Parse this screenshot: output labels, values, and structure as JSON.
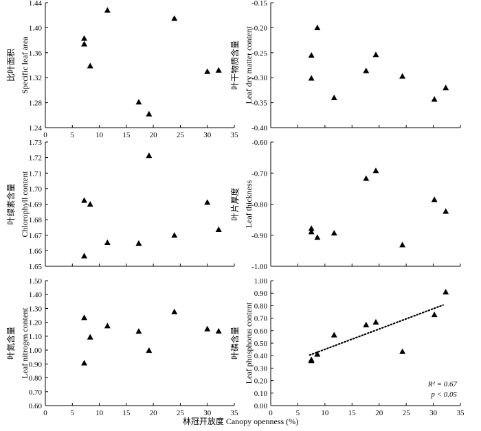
{
  "x_axis_label": "林冠开放度 Canopy openness (%)",
  "chart_data": [
    {
      "type": "scatter",
      "ylabel_cn": "比叶面积",
      "ylabel_en": "Specific leaf area",
      "xlim": [
        0,
        35
      ],
      "ylim": [
        1.24,
        1.44
      ],
      "xticks": [
        "0",
        "5",
        "10",
        "15",
        "20",
        "25",
        "30",
        "35"
      ],
      "yticks": [
        "1.24",
        "1.28",
        "1.32",
        "1.36",
        "1.40",
        "1.44"
      ],
      "points": [
        {
          "x": 7.2,
          "y": 1.383
        },
        {
          "x": 7.2,
          "y": 1.374
        },
        {
          "x": 8.3,
          "y": 1.339
        },
        {
          "x": 11.5,
          "y": 1.428
        },
        {
          "x": 17.3,
          "y": 1.281
        },
        {
          "x": 19.2,
          "y": 1.262
        },
        {
          "x": 23.9,
          "y": 1.415
        },
        {
          "x": 30.0,
          "y": 1.33
        },
        {
          "x": 32.1,
          "y": 1.332
        }
      ]
    },
    {
      "type": "scatter",
      "ylabel_cn": "叶干物质含量",
      "ylabel_en": "Leaf dry matter content",
      "xlim": [
        0,
        35
      ],
      "ylim": [
        -0.4,
        -0.15
      ],
      "xticks": [],
      "yticks": [
        "-0.15",
        "-0.20",
        "-0.25",
        "-0.30",
        "-0.35",
        "-0.40"
      ],
      "points": [
        {
          "x": 7.5,
          "y": -0.255
        },
        {
          "x": 7.5,
          "y": -0.301
        },
        {
          "x": 8.6,
          "y": -0.2
        },
        {
          "x": 11.7,
          "y": -0.34
        },
        {
          "x": 17.6,
          "y": -0.286
        },
        {
          "x": 19.4,
          "y": -0.254
        },
        {
          "x": 24.3,
          "y": -0.297
        },
        {
          "x": 30.2,
          "y": -0.343
        },
        {
          "x": 32.3,
          "y": -0.32
        }
      ]
    },
    {
      "type": "scatter",
      "ylabel_cn": "叶绿素含量",
      "ylabel_en": "Chlorophyll content",
      "xlim": [
        0,
        35
      ],
      "ylim": [
        1.65,
        1.73
      ],
      "xticks": [],
      "yticks": [
        "1.65",
        "1.66",
        "1.67",
        "1.68",
        "1.69",
        "1.70",
        "1.71",
        "1.72",
        "1.73"
      ],
      "points": [
        {
          "x": 7.2,
          "y": 1.6925
        },
        {
          "x": 7.2,
          "y": 1.6567
        },
        {
          "x": 8.3,
          "y": 1.69
        },
        {
          "x": 11.5,
          "y": 1.6653
        },
        {
          "x": 17.3,
          "y": 1.6648
        },
        {
          "x": 19.2,
          "y": 1.7213
        },
        {
          "x": 23.9,
          "y": 1.67
        },
        {
          "x": 30.0,
          "y": 1.6912
        },
        {
          "x": 32.1,
          "y": 1.6737
        }
      ]
    },
    {
      "type": "scatter",
      "ylabel_cn": "叶片厚度",
      "ylabel_en": "Leaf thickness",
      "xlim": [
        0,
        35
      ],
      "ylim": [
        -1.0,
        -0.6
      ],
      "xticks": [],
      "yticks": [
        "-0.60",
        "-0.70",
        "-0.80",
        "-0.90",
        "-1.00"
      ],
      "points": [
        {
          "x": 7.5,
          "y": -0.878
        },
        {
          "x": 7.5,
          "y": -0.889
        },
        {
          "x": 8.6,
          "y": -0.907
        },
        {
          "x": 11.7,
          "y": -0.893
        },
        {
          "x": 17.6,
          "y": -0.717
        },
        {
          "x": 19.4,
          "y": -0.692
        },
        {
          "x": 24.3,
          "y": -0.931
        },
        {
          "x": 30.2,
          "y": -0.785
        },
        {
          "x": 32.3,
          "y": -0.823
        }
      ]
    },
    {
      "type": "scatter",
      "ylabel_cn": "叶氮含量",
      "ylabel_en": "Leaf nitrogen content",
      "xlim": [
        0,
        35
      ],
      "ylim": [
        0.6,
        1.5
      ],
      "xticks": [
        "0",
        "5",
        "10",
        "15",
        "20",
        "25",
        "30",
        "35"
      ],
      "yticks": [
        "0.60",
        "0.70",
        "0.80",
        "0.90",
        "1.00",
        "1.10",
        "1.20",
        "1.30",
        "1.40",
        "1.50"
      ],
      "points": [
        {
          "x": 7.2,
          "y": 1.234
        },
        {
          "x": 7.2,
          "y": 0.907
        },
        {
          "x": 8.3,
          "y": 1.094
        },
        {
          "x": 11.5,
          "y": 1.175
        },
        {
          "x": 17.3,
          "y": 1.136
        },
        {
          "x": 19.2,
          "y": 0.998
        },
        {
          "x": 23.9,
          "y": 1.276
        },
        {
          "x": 30.0,
          "y": 1.153
        },
        {
          "x": 32.1,
          "y": 1.137
        }
      ]
    },
    {
      "type": "scatter",
      "ylabel_cn": "叶磷含量",
      "ylabel_en": "Leaf phosphorus content",
      "xlim": [
        0,
        35
      ],
      "ylim": [
        0.0,
        1.0
      ],
      "xticks": [
        "0",
        "5",
        "10",
        "15",
        "20",
        "25",
        "30",
        "35"
      ],
      "yticks": [
        "0.00",
        "0.10",
        "0.20",
        "0.30",
        "0.40",
        "0.50",
        "0.60",
        "0.70",
        "0.80",
        "0.90",
        "1.00"
      ],
      "points": [
        {
          "x": 7.5,
          "y": 0.359
        },
        {
          "x": 7.5,
          "y": 0.368
        },
        {
          "x": 8.6,
          "y": 0.412
        },
        {
          "x": 11.7,
          "y": 0.566
        },
        {
          "x": 17.6,
          "y": 0.647
        },
        {
          "x": 19.4,
          "y": 0.669
        },
        {
          "x": 24.3,
          "y": 0.433
        },
        {
          "x": 30.2,
          "y": 0.728
        },
        {
          "x": 32.3,
          "y": 0.91
        }
      ],
      "trendline": {
        "x": [
          7.2,
          31.8
        ],
        "y": [
          0.405,
          0.805
        ],
        "style": "dotted"
      },
      "annotation": [
        "R² = 0.67",
        "p < 0.05"
      ]
    }
  ]
}
